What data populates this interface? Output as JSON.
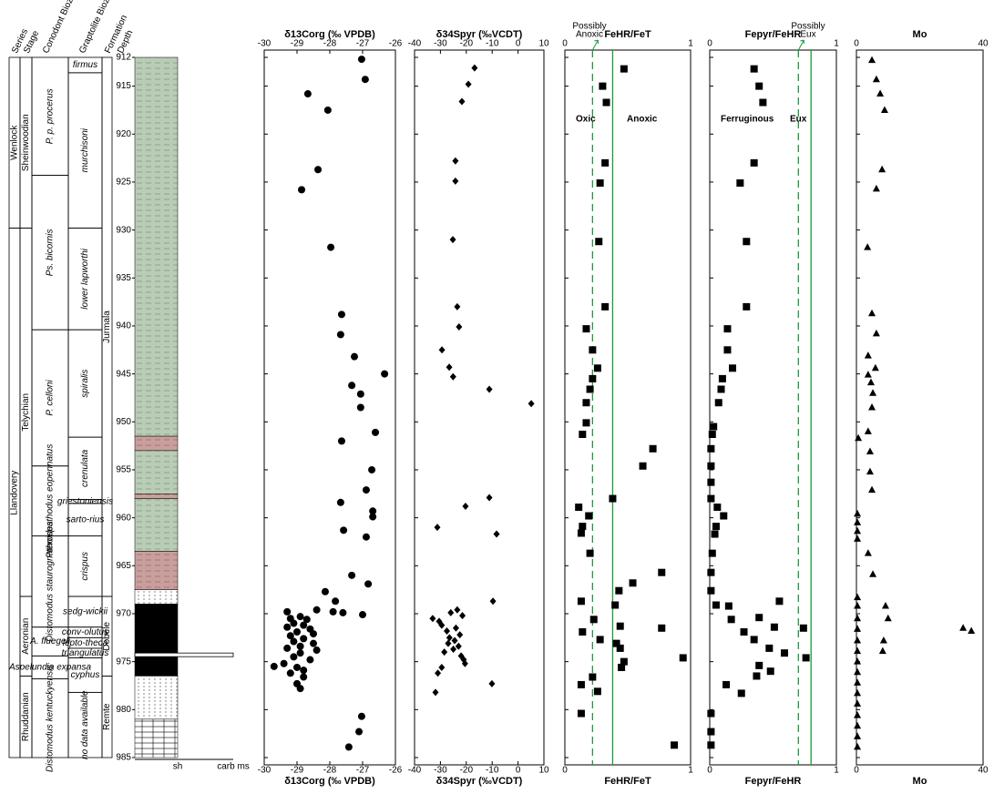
{
  "depth_axis": {
    "label": "Depth",
    "ylim": [
      912,
      985
    ],
    "yticks": [
      912,
      915,
      920,
      925,
      930,
      935,
      940,
      945,
      950,
      955,
      960,
      965,
      970,
      975,
      980,
      985
    ]
  },
  "stratigraphy": {
    "headers": [
      "Series",
      "Stage",
      "Conodont Biozones",
      "Graptolite Biozones",
      "Formation"
    ],
    "series": [
      {
        "name": "Wenlock",
        "top": 912,
        "base": 929.8
      },
      {
        "name": "Llandovery",
        "top": 929.8,
        "base": 985
      }
    ],
    "stages": [
      {
        "name": "Sheinwoodian",
        "top": 912,
        "base": 929.8
      },
      {
        "name": "Telychian",
        "top": 929.8,
        "base": 968.2
      },
      {
        "name": "Aeronian",
        "top": 968.2,
        "base": 976.5
      },
      {
        "name": "Rhuddanian",
        "top": 976.5,
        "base": 985
      }
    ],
    "conodont_zones": [
      {
        "name": "P. p. procerus",
        "top": 912,
        "base": 924.3
      },
      {
        "name": "Ps. bicornis",
        "top": 924.3,
        "base": 940.4
      },
      {
        "name": "P. celloni",
        "top": 940.4,
        "base": 954.6
      },
      {
        "name": "Pterospathodus eopennatus",
        "top": 954.6,
        "base": 961.9
      },
      {
        "name": "Distomodus staurognathoides",
        "top": 961.9,
        "base": 971.4
      },
      {
        "name": "A. fluegeli",
        "top": 971.4,
        "base": 974.4
      },
      {
        "name": "Aspelundia expansa",
        "top": 974.4,
        "base": 976.8
      },
      {
        "name": "Distomodus kentuckyensis",
        "top": 976.8,
        "base": 985
      }
    ],
    "graptolite_zones": [
      {
        "name": "firmus",
        "top": 912,
        "base": 913.6
      },
      {
        "name": "murchisoni",
        "top": 913.6,
        "base": 929.8
      },
      {
        "name": "lower lapworthi",
        "top": 929.8,
        "base": 940.4
      },
      {
        "name": "spiralis",
        "top": 940.4,
        "base": 951.6
      },
      {
        "name": "crenulata",
        "top": 951.6,
        "base": 958.1
      },
      {
        "name": "griestoniensis",
        "top": 958.1,
        "base": 958.5
      },
      {
        "name": "sarto-rius",
        "top": 958.5,
        "base": 961.9
      },
      {
        "name": "crispus",
        "top": 961.9,
        "base": 968.2
      },
      {
        "name": "sedg-wickii",
        "top": 968.2,
        "base": 971.4
      },
      {
        "name": "conv-olutus",
        "top": 971.4,
        "base": 972.5
      },
      {
        "name": "lepto-theca",
        "top": 972.5,
        "base": 973.6
      },
      {
        "name": "triangulatus",
        "top": 973.6,
        "base": 974.6
      },
      {
        "name": "cyphus",
        "top": 974.6,
        "base": 978.2
      },
      {
        "name": "no data available",
        "top": 978.2,
        "base": 985
      }
    ],
    "formations": [
      {
        "name": "Jurmala",
        "top": 912,
        "base": 968.2
      },
      {
        "name": "Dobele",
        "top": 968.2,
        "base": 976.5
      },
      {
        "name": "Remte",
        "top": 976.5,
        "base": 985
      }
    ],
    "lithology": [
      {
        "top": 912,
        "base": 951.5,
        "type": "green"
      },
      {
        "top": 951.5,
        "base": 953,
        "type": "pink"
      },
      {
        "top": 953,
        "base": 957.5,
        "type": "green"
      },
      {
        "top": 957.5,
        "base": 958,
        "type": "pink"
      },
      {
        "top": 958,
        "base": 963.5,
        "type": "green"
      },
      {
        "top": 963.5,
        "base": 967.5,
        "type": "pink"
      },
      {
        "top": 967.5,
        "base": 969,
        "type": "dotted"
      },
      {
        "top": 969,
        "base": 976.5,
        "type": "black"
      },
      {
        "top": 976.5,
        "base": 981,
        "type": "dotted"
      },
      {
        "top": 981,
        "base": 985,
        "type": "brick"
      }
    ],
    "lithology_labels": [
      "sh",
      "carb ms"
    ]
  },
  "chart_data": [
    {
      "type": "scatter",
      "title": "δ13Corg (‰ VPDB)",
      "marker": "circle",
      "color": "#000",
      "xlim": [
        -30,
        -26
      ],
      "xticks": [
        -30,
        -29,
        -28,
        -27,
        -26
      ],
      "y": [
        912.2,
        914.3,
        915.8,
        917.5,
        923.7,
        925.8,
        931.8,
        938.8,
        940.9,
        943.2,
        945.0,
        946.2,
        947.1,
        948.5,
        951.1,
        952.0,
        955.0,
        957.1,
        958.4,
        959.3,
        959.9,
        961.3,
        962.0,
        966.0,
        966.9,
        967.7,
        968.7,
        969.6,
        969.8,
        969.9,
        970.1,
        969.8,
        970.5,
        970.3,
        970.6,
        971.0,
        971.2,
        971.4,
        971.6,
        971.9,
        972.1,
        972.3,
        972.6,
        972.9,
        973.1,
        973.4,
        973.6,
        973.8,
        974.1,
        974.5,
        974.8,
        975.2,
        975.5,
        975.6,
        975.9,
        976.2,
        976.6,
        977.3,
        977.8,
        980.7,
        982.3,
        983.9
      ],
      "x": [
        -27.03,
        -26.92,
        -28.67,
        -28.06,
        -28.36,
        -28.86,
        -27.97,
        -27.64,
        -27.67,
        -27.25,
        -26.33,
        -27.33,
        -27.06,
        -27.06,
        -26.61,
        -27.64,
        -26.72,
        -26.89,
        -27.67,
        -26.69,
        -26.69,
        -27.58,
        -26.89,
        -27.33,
        -26.83,
        -28.14,
        -27.83,
        -28.4,
        -27.9,
        -27.6,
        -27.0,
        -29.3,
        -29.2,
        -28.9,
        -28.7,
        -29.1,
        -28.8,
        -29.3,
        -28.6,
        -29.0,
        -28.5,
        -29.2,
        -28.8,
        -29.1,
        -28.5,
        -28.9,
        -29.3,
        -28.4,
        -28.9,
        -29.1,
        -28.6,
        -29.4,
        -29.7,
        -29.0,
        -28.8,
        -29.2,
        -28.8,
        -29.0,
        -28.9,
        -27.03,
        -27.11,
        -27.42
      ]
    },
    {
      "type": "scatter",
      "title": "δ34Spyr (‰VCDT)",
      "marker": "diamond",
      "color": "#000",
      "xlim": [
        -40,
        10
      ],
      "xticks": [
        -40,
        -30,
        -20,
        -10,
        0,
        10
      ],
      "y": [
        913.1,
        914.8,
        916.6,
        922.8,
        924.9,
        931.0,
        938.0,
        940.1,
        942.5,
        944.3,
        945.3,
        946.6,
        948.1,
        957.9,
        958.8,
        961.0,
        961.7,
        968.7,
        969.6,
        969.9,
        970.2,
        970.5,
        970.8,
        971.2,
        971.5,
        971.8,
        972.2,
        972.5,
        972.8,
        973.1,
        973.4,
        973.7,
        974.0,
        974.4,
        974.8,
        975.2,
        975.6,
        976.2,
        977.3,
        978.2
      ],
      "x": [
        -16.8,
        -19.2,
        -21.7,
        -24.2,
        -24.2,
        -25.2,
        -23.5,
        -22.8,
        -29.4,
        -26.6,
        -25.1,
        -11.1,
        5.1,
        -11.1,
        -20.3,
        -31.2,
        -8.3,
        -9.7,
        -23.5,
        -26.0,
        -21.5,
        -33.0,
        -30.5,
        -29.5,
        -24.0,
        -27.5,
        -22.5,
        -26.5,
        -24.5,
        -27.0,
        -23.0,
        -25.0,
        -28.5,
        -22.0,
        -21.0,
        -20.5,
        -29.5,
        -31.0,
        -10.1,
        -31.9
      ]
    },
    {
      "type": "scatter",
      "title": "FeHR/FeT",
      "marker": "square",
      "color": "#000",
      "xlim": [
        0,
        1
      ],
      "xticks": [
        0,
        1
      ],
      "thresholds": [
        {
          "value": 0.22,
          "style": "dashed"
        },
        {
          "value": 0.38,
          "style": "solid"
        }
      ],
      "threshold_color": "#1a9a3a",
      "annotations": [
        [
          "Oxic"
        ],
        [
          "Anoxic"
        ],
        [
          "Possibly",
          "Anoxic"
        ]
      ],
      "y": [
        913.2,
        915.0,
        916.7,
        923.0,
        925.1,
        931.2,
        938.0,
        940.3,
        942.5,
        944.4,
        945.5,
        946.6,
        948.0,
        950.1,
        951.3,
        952.8,
        954.6,
        958.0,
        958.9,
        959.8,
        960.9,
        961.6,
        963.7,
        965.7,
        966.8,
        967.6,
        968.7,
        969.1,
        970.6,
        971.3,
        971.5,
        971.9,
        972.7,
        973.1,
        973.6,
        974.6,
        975.0,
        975.6,
        976.6,
        977.4,
        978.1,
        980.4,
        983.7
      ],
      "x": [
        0.47,
        0.3,
        0.33,
        0.32,
        0.28,
        0.27,
        0.32,
        0.17,
        0.22,
        0.26,
        0.22,
        0.2,
        0.17,
        0.17,
        0.14,
        0.7,
        0.62,
        0.38,
        0.11,
        0.19,
        0.14,
        0.13,
        0.2,
        0.77,
        0.54,
        0.43,
        0.13,
        0.4,
        0.23,
        0.44,
        0.77,
        0.14,
        0.28,
        0.41,
        0.44,
        0.94,
        0.47,
        0.45,
        0.22,
        0.13,
        0.26,
        0.13,
        0.87
      ]
    },
    {
      "type": "scatter",
      "title": "Fepyr/FeHR",
      "marker": "square",
      "color": "#000",
      "xlim": [
        0,
        1
      ],
      "xticks": [
        0,
        1
      ],
      "thresholds": [
        {
          "value": 0.7,
          "style": "dashed"
        },
        {
          "value": 0.8,
          "style": "solid"
        }
      ],
      "threshold_color": "#1a9a3a",
      "annotations": [
        [
          "Ferruginous"
        ],
        [
          "Eux"
        ],
        [
          "Possibly",
          "Eux"
        ]
      ],
      "y": [
        913.2,
        915.0,
        916.7,
        923.0,
        925.1,
        931.2,
        938.0,
        940.3,
        942.5,
        944.4,
        945.5,
        946.6,
        948.0,
        950.5,
        951.3,
        952.8,
        954.6,
        956.3,
        958.0,
        958.9,
        959.8,
        960.9,
        961.7,
        963.7,
        965.7,
        967.6,
        969.1,
        969.2,
        968.7,
        970.6,
        970.4,
        971.4,
        971.9,
        971.5,
        972.7,
        973.6,
        974.1,
        974.6,
        975.4,
        976.0,
        976.5,
        977.4,
        978.3,
        980.4,
        982.3,
        983.7
      ],
      "x": [
        0.35,
        0.39,
        0.42,
        0.35,
        0.24,
        0.29,
        0.29,
        0.14,
        0.14,
        0.18,
        0.1,
        0.09,
        0.07,
        0.03,
        0.02,
        0.01,
        0.01,
        0.01,
        0.01,
        0.06,
        0.11,
        0.05,
        0.04,
        0.02,
        0.01,
        0.01,
        0.05,
        0.15,
        0.55,
        0.17,
        0.39,
        0.51,
        0.27,
        0.74,
        0.35,
        0.47,
        0.59,
        0.76,
        0.39,
        0.48,
        0.37,
        0.13,
        0.25,
        0.01,
        0.01,
        0.01
      ]
    },
    {
      "type": "scatter",
      "title": "Mo",
      "marker": "triangle",
      "color": "#000",
      "xlim": [
        0,
        40
      ],
      "xticks": [
        0,
        40
      ],
      "y": [
        912.3,
        914.3,
        915.8,
        917.5,
        923.7,
        925.7,
        931.8,
        938.7,
        940.8,
        943.1,
        944.4,
        945.1,
        945.9,
        947.0,
        948.5,
        951.0,
        951.7,
        953.1,
        955.2,
        957.1,
        959.6,
        960.5,
        961.4,
        962.2,
        963.7,
        965.9,
        968.3,
        969.2,
        970.5,
        971.6,
        972.8,
        973.9,
        975.0,
        976.1,
        977.2,
        978.3,
        979.4,
        980.6,
        981.7,
        982.8,
        983.9,
        969.2,
        970.5,
        972.8,
        973.9,
        971.5,
        971.8
      ],
      "x": [
        4.9,
        6.3,
        7.5,
        8.9,
        8.1,
        6.3,
        3.5,
        4.9,
        6.3,
        3.7,
        6.0,
        3.7,
        4.6,
        5.2,
        4.9,
        3.7,
        0.6,
        4.3,
        4.3,
        4.9,
        0.3,
        0.3,
        0.3,
        0.3,
        3.7,
        5.2,
        0.3,
        0.3,
        0.3,
        0.3,
        0.3,
        0.3,
        0.3,
        0.3,
        0.3,
        0.3,
        0.3,
        0.3,
        0.3,
        0.3,
        0.3,
        9.2,
        10.0,
        8.6,
        8.3,
        33.7,
        36.3
      ]
    }
  ]
}
